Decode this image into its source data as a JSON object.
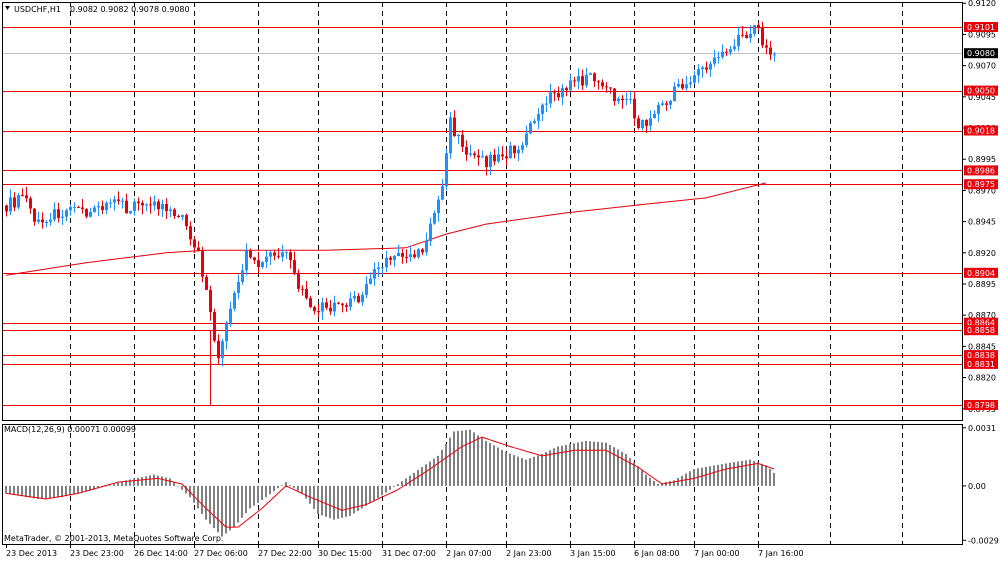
{
  "header": {
    "symbol_label": "USDCHF,H1",
    "ohlc_label": "0.9082 0.9082 0.9078 0.9080"
  },
  "macd_header": {
    "label": "MACD(12,26,9) 0.00071 0.00099"
  },
  "copyright": "MetaTrader, © 2001-2013, MetaQuotes Software Corp.",
  "colors": {
    "bull": "#1e90ff",
    "bear": "#e8000b",
    "level": "#e8000b",
    "ma": "#e8000b",
    "grid": "#000000",
    "hist": "#808080",
    "signal": "#e8000b"
  },
  "chart_data": [
    {
      "type": "candlestick",
      "title": "USDCHF,H1",
      "ylim": [
        0.8786,
        0.9121
      ],
      "yticks": [
        {
          "v": 0.912,
          "label": "0.9120"
        },
        {
          "v": 0.9095,
          "label": "0.9095"
        },
        {
          "v": 0.907,
          "label": "0.9070"
        },
        {
          "v": 0.9045,
          "label": "0.9045"
        },
        {
          "v": 0.902,
          "label": "0.9020"
        },
        {
          "v": 0.8995,
          "label": "0.8995"
        },
        {
          "v": 0.897,
          "label": "0.8970"
        },
        {
          "v": 0.8945,
          "label": "0.8945"
        },
        {
          "v": 0.892,
          "label": "0.8920"
        },
        {
          "v": 0.8895,
          "label": "0.8895"
        },
        {
          "v": 0.887,
          "label": "0.8870"
        },
        {
          "v": 0.8845,
          "label": "0.8845"
        },
        {
          "v": 0.882,
          "label": "0.8820"
        },
        {
          "v": 0.8795,
          "label": "0.8795"
        }
      ],
      "current_price": {
        "v": 0.908,
        "label": "0.9080"
      },
      "levels": [
        {
          "v": 0.9101,
          "label": "0.9101"
        },
        {
          "v": 0.905,
          "label": "0.9050"
        },
        {
          "v": 0.9018,
          "label": "0.9018"
        },
        {
          "v": 0.8986,
          "label": "0.8986"
        },
        {
          "v": 0.8975,
          "label": "0.8975"
        },
        {
          "v": 0.8904,
          "label": "0.8904"
        },
        {
          "v": 0.8864,
          "label": "0.8864"
        },
        {
          "v": 0.8858,
          "label": "0.8858"
        },
        {
          "v": 0.8838,
          "label": "0.8838"
        },
        {
          "v": 0.8831,
          "label": "0.8831"
        },
        {
          "v": 0.8798,
          "label": "0.8798"
        }
      ],
      "anchors": [
        [
          0,
          0.8958
        ],
        [
          4,
          0.8964
        ],
        [
          8,
          0.8944
        ],
        [
          12,
          0.8951
        ],
        [
          17,
          0.8952
        ],
        [
          22,
          0.8955
        ],
        [
          26,
          0.8961
        ],
        [
          30,
          0.8956
        ],
        [
          35,
          0.8962
        ],
        [
          39,
          0.8955
        ],
        [
          45,
          0.8944
        ],
        [
          48,
          0.8918
        ],
        [
          51,
          0.8875
        ],
        [
          53,
          0.8832
        ],
        [
          55,
          0.8866
        ],
        [
          58,
          0.8894
        ],
        [
          60,
          0.892
        ],
        [
          63,
          0.8912
        ],
        [
          67,
          0.8922
        ],
        [
          70,
          0.8918
        ],
        [
          73,
          0.8895
        ],
        [
          76,
          0.8872
        ],
        [
          80,
          0.8878
        ],
        [
          84,
          0.8875
        ],
        [
          88,
          0.8884
        ],
        [
          92,
          0.8905
        ],
        [
          96,
          0.8918
        ],
        [
          100,
          0.8915
        ],
        [
          104,
          0.8921
        ],
        [
          107,
          0.895
        ],
        [
          109,
          0.8975
        ],
        [
          111,
          0.9025
        ],
        [
          113,
          0.9012
        ],
        [
          116,
          0.8996
        ],
        [
          120,
          0.8993
        ],
        [
          124,
          0.8998
        ],
        [
          128,
          0.9005
        ],
        [
          132,
          0.9024
        ],
        [
          136,
          0.9045
        ],
        [
          140,
          0.9053
        ],
        [
          145,
          0.906
        ],
        [
          148,
          0.906
        ],
        [
          152,
          0.9045
        ],
        [
          155,
          0.9048
        ],
        [
          158,
          0.9022
        ],
        [
          161,
          0.9028
        ],
        [
          164,
          0.904
        ],
        [
          168,
          0.9053
        ],
        [
          172,
          0.9063
        ],
        [
          176,
          0.907
        ],
        [
          180,
          0.9085
        ],
        [
          184,
          0.9095
        ],
        [
          188,
          0.91
        ],
        [
          190,
          0.9082
        ],
        [
          192,
          0.908
        ]
      ],
      "ma_line": [
        [
          0,
          0.8902
        ],
        [
          20,
          0.8912
        ],
        [
          40,
          0.892
        ],
        [
          50,
          0.8922
        ],
        [
          60,
          0.8922
        ],
        [
          80,
          0.8922
        ],
        [
          100,
          0.8924
        ],
        [
          110,
          0.8935
        ],
        [
          120,
          0.8943
        ],
        [
          140,
          0.8952
        ],
        [
          160,
          0.8959
        ],
        [
          175,
          0.8964
        ],
        [
          190,
          0.8976
        ]
      ],
      "x_ticks": [
        {
          "i": 0,
          "label": "23 Dec 2013"
        },
        {
          "i": 16,
          "label": "23 Dec 23:00"
        },
        {
          "i": 32,
          "label": "26 Dec 14:00"
        },
        {
          "i": 47,
          "label": "27 Dec 06:00"
        },
        {
          "i": 63,
          "label": "27 Dec 22:00"
        },
        {
          "i": 78,
          "label": "30 Dec 15:00"
        },
        {
          "i": 94,
          "label": "31 Dec 07:00"
        },
        {
          "i": 110,
          "label": "2 Jan 07:00"
        },
        {
          "i": 125,
          "label": "2 Jan 23:00"
        },
        {
          "i": 141,
          "label": "3 Jan 15:00"
        },
        {
          "i": 157,
          "label": "6 Jan 08:00"
        },
        {
          "i": 172,
          "label": "7 Jan 00:00"
        },
        {
          "i": 188,
          "label": "7 Jan 16:00"
        }
      ]
    },
    {
      "type": "bar",
      "title": "MACD(12,26,9) 0.00071 0.00099",
      "ylim": [
        -0.0031,
        0.0033
      ],
      "yticks": [
        {
          "v": 0.0031,
          "label": "0.0031"
        },
        {
          "v": 0.0,
          "label": "0.00"
        },
        {
          "v": -0.0029,
          "label": "-0.0029"
        }
      ],
      "hist_anchors": [
        [
          0,
          -0.0004
        ],
        [
          8,
          -0.0007
        ],
        [
          14,
          -0.0006
        ],
        [
          22,
          -0.0002
        ],
        [
          30,
          0.0003
        ],
        [
          37,
          0.0006
        ],
        [
          41,
          0.0004
        ],
        [
          46,
          -0.0006
        ],
        [
          50,
          -0.0018
        ],
        [
          54,
          -0.0027
        ],
        [
          57,
          -0.0022
        ],
        [
          61,
          -0.0012
        ],
        [
          65,
          -0.0006
        ],
        [
          70,
          0.0002
        ],
        [
          74,
          -0.0004
        ],
        [
          78,
          -0.0015
        ],
        [
          82,
          -0.0018
        ],
        [
          86,
          -0.0016
        ],
        [
          92,
          -0.0008
        ],
        [
          98,
          0.0001
        ],
        [
          104,
          0.001
        ],
        [
          108,
          0.0016
        ],
        [
          112,
          0.0029
        ],
        [
          116,
          0.003
        ],
        [
          120,
          0.0024
        ],
        [
          125,
          0.0018
        ],
        [
          130,
          0.0014
        ],
        [
          134,
          0.0017
        ],
        [
          138,
          0.0021
        ],
        [
          145,
          0.0024
        ],
        [
          150,
          0.0023
        ],
        [
          155,
          0.0017
        ],
        [
          160,
          0.0006
        ],
        [
          163,
          0.0001
        ],
        [
          167,
          0.0003
        ],
        [
          172,
          0.0009
        ],
        [
          180,
          0.0012
        ],
        [
          186,
          0.0014
        ],
        [
          190,
          0.0011
        ],
        [
          192,
          0.0007
        ]
      ],
      "signal_anchors": [
        [
          0,
          -0.0004
        ],
        [
          10,
          -0.0007
        ],
        [
          18,
          -0.0004
        ],
        [
          28,
          0.0002
        ],
        [
          38,
          0.0004
        ],
        [
          44,
          0.0001
        ],
        [
          50,
          -0.0012
        ],
        [
          55,
          -0.0022
        ],
        [
          58,
          -0.0022
        ],
        [
          64,
          -0.0012
        ],
        [
          70,
          0.0
        ],
        [
          76,
          -0.0006
        ],
        [
          84,
          -0.0013
        ],
        [
          90,
          -0.001
        ],
        [
          98,
          -0.0002
        ],
        [
          106,
          0.0009
        ],
        [
          114,
          0.0021
        ],
        [
          119,
          0.0026
        ],
        [
          126,
          0.0021
        ],
        [
          134,
          0.0016
        ],
        [
          142,
          0.0019
        ],
        [
          150,
          0.0019
        ],
        [
          158,
          0.001
        ],
        [
          164,
          0.0001
        ],
        [
          172,
          0.0004
        ],
        [
          180,
          0.0009
        ],
        [
          188,
          0.0012
        ],
        [
          192,
          0.0009
        ]
      ]
    }
  ]
}
